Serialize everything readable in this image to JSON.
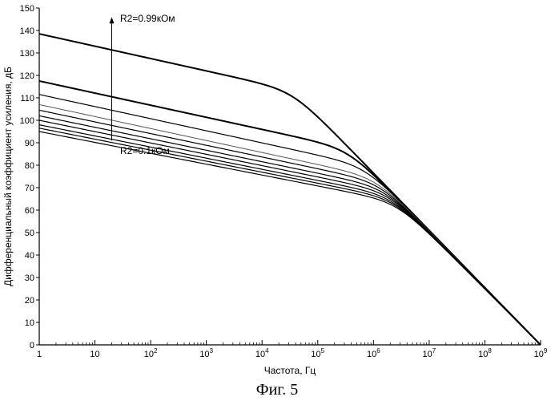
{
  "chart_data": {
    "type": "line",
    "xlabel": "Частота, Гц",
    "ylabel": "Дифференциальный коэффициент усиления, дБ",
    "x_scale": "log",
    "xlim": [
      1,
      1000000000
    ],
    "ylim": [
      0,
      150
    ],
    "x_ticks": [
      {
        "value": 1,
        "base": "1",
        "exp": ""
      },
      {
        "value": 10,
        "base": "10",
        "exp": ""
      },
      {
        "value": 100,
        "base": "10",
        "exp": "2"
      },
      {
        "value": 1000,
        "base": "10",
        "exp": "3"
      },
      {
        "value": 10000,
        "base": "10",
        "exp": "4"
      },
      {
        "value": 100000,
        "base": "10",
        "exp": "5"
      },
      {
        "value": 1000000,
        "base": "10",
        "exp": "6"
      },
      {
        "value": 10000000,
        "base": "10",
        "exp": "7"
      },
      {
        "value": 100000000,
        "base": "10",
        "exp": "8"
      },
      {
        "value": 1000000000,
        "base": "10",
        "exp": "9"
      }
    ],
    "y_ticks": [
      0,
      10,
      20,
      30,
      40,
      50,
      60,
      70,
      80,
      90,
      100,
      110,
      120,
      130,
      140,
      150
    ],
    "grid": false,
    "legend": "none",
    "series": [
      {
        "dc_gain": 138.5,
        "corner_exp": 4.55,
        "style": "thick"
      },
      {
        "dc_gain": 117.5,
        "corner_exp": 5.55,
        "style": "thick"
      },
      {
        "dc_gain": 111.5,
        "corner_exp": 5.85,
        "style": "normal"
      },
      {
        "dc_gain": 107.0,
        "corner_exp": 6.05,
        "style": "light"
      },
      {
        "dc_gain": 104.5,
        "corner_exp": 6.12,
        "style": "normal"
      },
      {
        "dc_gain": 102.0,
        "corner_exp": 6.2,
        "style": "normal"
      },
      {
        "dc_gain": 100.0,
        "corner_exp": 6.27,
        "style": "normal"
      },
      {
        "dc_gain": 98.0,
        "corner_exp": 6.33,
        "style": "normal"
      },
      {
        "dc_gain": 96.5,
        "corner_exp": 6.38,
        "style": "normal"
      },
      {
        "dc_gain": 95.0,
        "corner_exp": 6.43,
        "style": "normal"
      }
    ],
    "annotations": {
      "top_label": "R2=0.99кОм",
      "bottom_label": "R2=0.1кОм",
      "arrow_x": 20,
      "arrow_from_y": 91,
      "arrow_to_y": 146
    }
  },
  "caption": "Фиг. 5"
}
